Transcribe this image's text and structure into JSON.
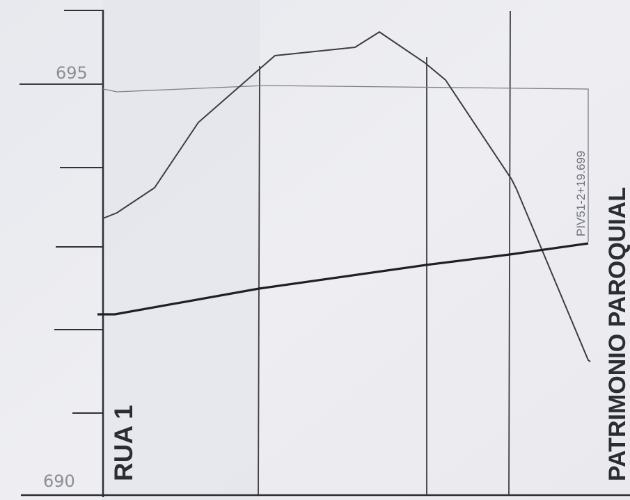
{
  "drawing": {
    "elevations": {
      "top": "695",
      "bottom": "690"
    },
    "street_label": "RUA 1",
    "property_label": "PATRIMONIO PAROQUIAL",
    "station_label": "PIV51-2+19.699"
  }
}
